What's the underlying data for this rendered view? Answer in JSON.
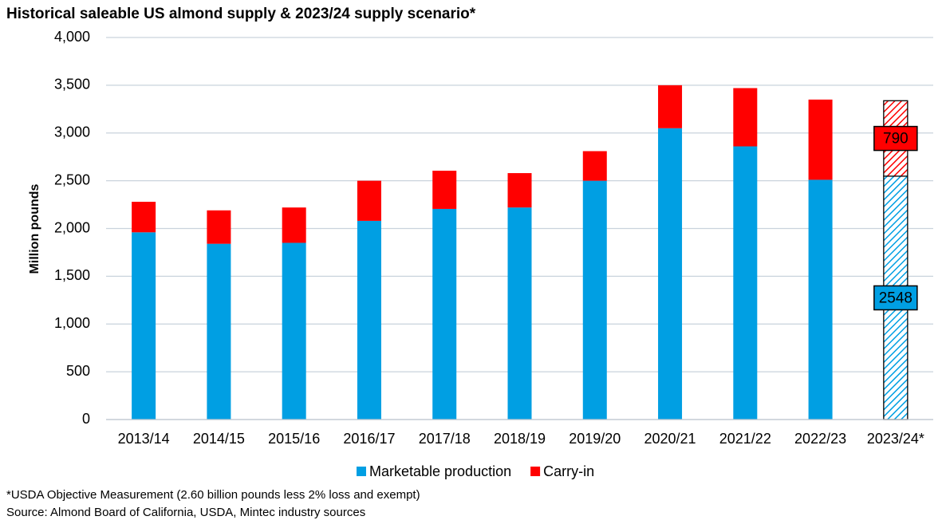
{
  "chart_data": {
    "type": "stacked_bar",
    "title": "Historical saleable US almond supply & 2023/24 supply scenario*",
    "y_label": "Million pounds",
    "categories": [
      "2013/14",
      "2014/15",
      "2015/16",
      "2016/17",
      "2017/18",
      "2018/19",
      "2019/20",
      "2020/21",
      "2021/22",
      "2022/23",
      "2023/24*"
    ],
    "series": [
      {
        "name": "Marketable production",
        "color": "#009fe3",
        "values": [
          1960,
          1840,
          1850,
          2080,
          2205,
          2220,
          2500,
          3050,
          2860,
          2510,
          2548
        ]
      },
      {
        "name": "Carry-in",
        "color": "#ff0000",
        "values": [
          320,
          350,
          370,
          420,
          400,
          360,
          310,
          450,
          610,
          840,
          790
        ]
      }
    ],
    "ylim": [
      0,
      4000
    ],
    "yticks": [
      0,
      500,
      {
        "value": 1000,
        "label": "1,000"
      },
      {
        "value": 1500,
        "label": "1,500"
      },
      {
        "value": 2000,
        "label": "2,000"
      },
      {
        "value": 2500,
        "label": "2,500"
      },
      {
        "value": 3000,
        "label": "3,000"
      },
      {
        "value": 3500,
        "label": "3,500"
      },
      {
        "value": 4000,
        "label": "4,000"
      }
    ],
    "grid": true,
    "hatch_last": true,
    "notes": [
      "*USDA Objective Measurement (2.60 billion pounds less 2% loss and exempt)",
      "Source: Almond Board of California, USDA, Mintec industry sources"
    ]
  }
}
